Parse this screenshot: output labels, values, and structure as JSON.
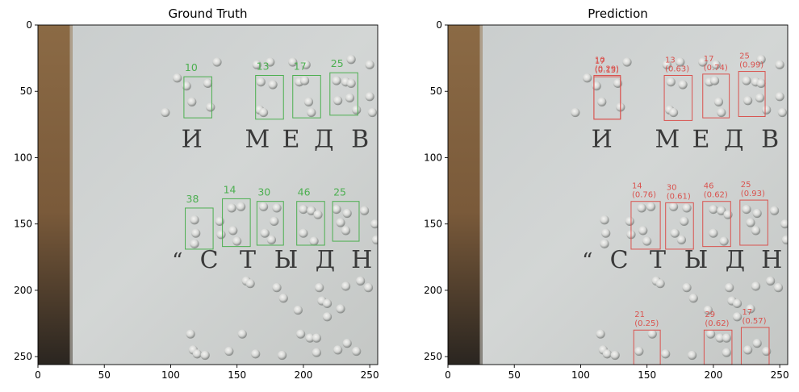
{
  "panels": [
    {
      "id": "ground-truth",
      "title": "Ground Truth",
      "box_color": "#4caf50",
      "show_scores": false,
      "boxes": [
        {
          "label": "10",
          "x0": 110,
          "y0": 39,
          "x1": 131,
          "y1": 70
        },
        {
          "label": "13",
          "x0": 164,
          "y0": 38,
          "x1": 185,
          "y1": 71
        },
        {
          "label": "17",
          "x0": 192,
          "y0": 38,
          "x1": 213,
          "y1": 70
        },
        {
          "label": "25",
          "x0": 220,
          "y0": 36,
          "x1": 241,
          "y1": 68
        },
        {
          "label": "38",
          "x0": 111,
          "y0": 138,
          "x1": 132,
          "y1": 169
        },
        {
          "label": "14",
          "x0": 139,
          "y0": 131,
          "x1": 160,
          "y1": 167
        },
        {
          "label": "30",
          "x0": 165,
          "y0": 133,
          "x1": 185,
          "y1": 166
        },
        {
          "label": "46",
          "x0": 195,
          "y0": 133,
          "x1": 216,
          "y1": 166
        },
        {
          "label": "25",
          "x0": 222,
          "y0": 133,
          "x1": 242,
          "y1": 163
        }
      ]
    },
    {
      "id": "prediction",
      "title": "Prediction",
      "box_color": "#d9534f",
      "show_scores": true,
      "boxes": [
        {
          "label": "10",
          "score": "(0.29)",
          "x0": 110,
          "y0": 38,
          "x1": 130,
          "y1": 71
        },
        {
          "label": "17",
          "score": "(0.15)",
          "x0": 110,
          "y0": 39,
          "x1": 130,
          "y1": 71
        },
        {
          "label": "13",
          "score": "(0.63)",
          "x0": 163,
          "y0": 38,
          "x1": 184,
          "y1": 72
        },
        {
          "label": "17",
          "score": "(0.74)",
          "x0": 192,
          "y0": 37,
          "x1": 212,
          "y1": 70
        },
        {
          "label": "25",
          "score": "(0.99)",
          "x0": 219,
          "y0": 35,
          "x1": 239,
          "y1": 69
        },
        {
          "label": "14",
          "score": "(0.76)",
          "x0": 138,
          "y0": 133,
          "x1": 160,
          "y1": 169
        },
        {
          "label": "30",
          "score": "(0.61)",
          "x0": 164,
          "y0": 134,
          "x1": 185,
          "y1": 169
        },
        {
          "label": "46",
          "score": "(0.62)",
          "x0": 192,
          "y0": 133,
          "x1": 213,
          "y1": 167
        },
        {
          "label": "25",
          "score": "(0.93)",
          "x0": 220,
          "y0": 132,
          "x1": 241,
          "y1": 166
        },
        {
          "label": "21",
          "score": "(0.25)",
          "x0": 140,
          "y0": 230,
          "x1": 160,
          "y1": 256
        },
        {
          "label": "29",
          "score": "(0.62)",
          "x0": 193,
          "y0": 230,
          "x1": 214,
          "y1": 256
        },
        {
          "label": "17",
          "score": "(0.57)",
          "x0": 221,
          "y0": 228,
          "x1": 242,
          "y1": 256
        }
      ]
    }
  ],
  "axes": {
    "xlim": [
      0,
      256
    ],
    "ylim": [
      256,
      0
    ],
    "xticks": [
      "0",
      "50",
      "100",
      "150",
      "200",
      "250"
    ],
    "yticks": [
      "0",
      "50",
      "100",
      "150",
      "200",
      "250"
    ]
  },
  "image_text": {
    "row1": [
      "И",
      "М",
      "Е",
      "Д",
      "В"
    ],
    "row2": [
      "“",
      "С",
      "Т",
      "Ы",
      "Д",
      "Н"
    ]
  }
}
